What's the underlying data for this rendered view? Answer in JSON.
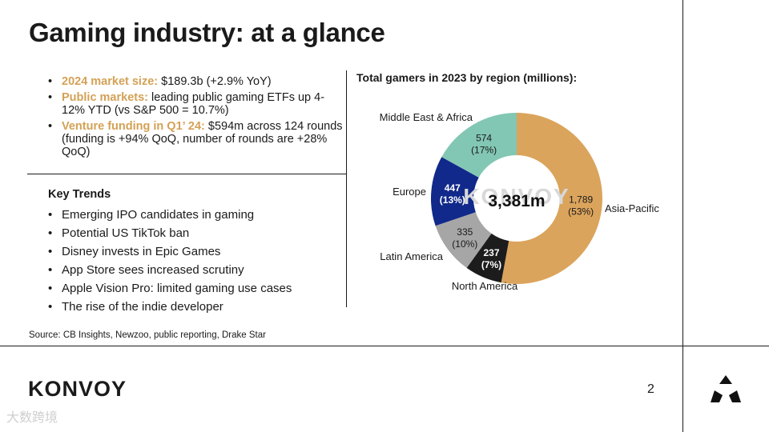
{
  "title": "Gaming industry: at a glance",
  "bullets": [
    {
      "label": "2024 market size:",
      "text": " $189.3b (+2.9% YoY)"
    },
    {
      "label": "Public markets:",
      "text": " leading public gaming ETFs up 4-12% YTD (vs S&P 500 = 10.7%)"
    },
    {
      "label": "Venture funding in Q1’ 24:",
      "text": " $594m across 124 rounds (funding is +94% QoQ, number of rounds are +28% QoQ)"
    }
  ],
  "key_trends": {
    "title": "Key Trends",
    "items": [
      "Emerging IPO candidates in gaming",
      "Potential US TikTok ban",
      "Disney invests in Epic Games",
      "App Store sees increased scrutiny",
      "Apple Vision Pro: limited gaming use cases",
      "The rise of the indie developer"
    ]
  },
  "source": "Source: CB Insights, Newzoo, public reporting, Drake Star",
  "chart_data": {
    "type": "pie",
    "title": "Total gamers in 2023 by region (millions):",
    "center_label": "3,381m",
    "watermark": "KONVOY",
    "slices": [
      {
        "name": "Asia-Pacific",
        "value": 1789,
        "value_label": "1,789",
        "pct_label": "(53%)",
        "color": "#dba45c"
      },
      {
        "name": "North America",
        "value": 237,
        "value_label": "237",
        "pct_label": "(7%)",
        "color": "#1c1c1c"
      },
      {
        "name": "Latin America",
        "value": 335,
        "value_label": "335",
        "pct_label": "(10%)",
        "color": "#a6a6a6"
      },
      {
        "name": "Europe",
        "value": 447,
        "value_label": "447",
        "pct_label": "(13%)",
        "color": "#10298a"
      },
      {
        "name": "Middle East & Africa",
        "value": 574,
        "value_label": "574",
        "pct_label": "(17%)",
        "color": "#82c7b3"
      }
    ]
  },
  "footer": {
    "logo": "KONVOY",
    "page_number": "2",
    "watermark": "大数跨境"
  }
}
